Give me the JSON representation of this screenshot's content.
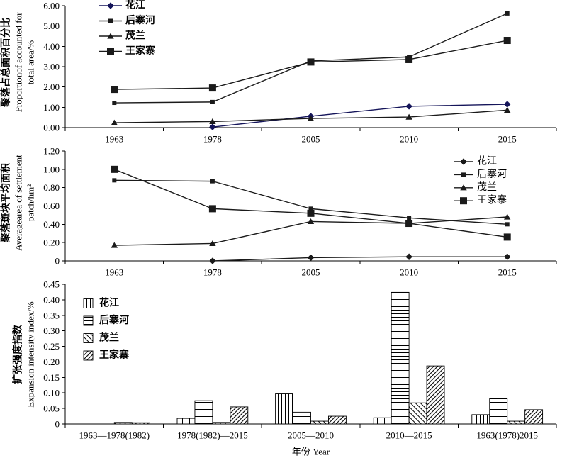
{
  "chart_data": [
    {
      "type": "line",
      "categories": [
        "1963",
        "1978",
        "2005",
        "2010",
        "2015"
      ],
      "ylabel": [
        "聚落占总面积百分比",
        "Proportionof accounted for",
        "total area/%"
      ],
      "ylim": [
        0,
        6
      ],
      "yticks": [
        "0.00",
        "1.00",
        "2.00",
        "3.00",
        "4.00",
        "5.00",
        "6.00"
      ],
      "grid": false,
      "legend": "top-left",
      "series": [
        {
          "name": "花江",
          "marker": "diamond",
          "color": "#15155a",
          "values": [
            null,
            0.03,
            0.56,
            1.05,
            1.15
          ]
        },
        {
          "name": "后寨河",
          "marker": "small-square",
          "color": "#1a1a1a",
          "values": [
            1.22,
            1.26,
            3.28,
            3.48,
            5.62
          ]
        },
        {
          "name": "茂兰",
          "marker": "triangle",
          "color": "#1a1a1a",
          "values": [
            0.24,
            0.3,
            0.45,
            0.52,
            0.86
          ]
        },
        {
          "name": "王家寨",
          "marker": "large-square",
          "color": "#1a1a1a",
          "values": [
            1.88,
            1.95,
            3.23,
            3.35,
            4.29
          ]
        }
      ]
    },
    {
      "type": "line",
      "categories": [
        "1963",
        "1978",
        "2005",
        "2010",
        "2015"
      ],
      "ylabel": [
        "聚落斑块平均面积",
        "Averagearea of settlement",
        "patch/hm²"
      ],
      "ylim": [
        0,
        1.2
      ],
      "yticks": [
        "0",
        "0.20",
        "0.40",
        "0.60",
        "0.80",
        "1.00",
        "1.20"
      ],
      "grid": false,
      "legend": "top-right",
      "series": [
        {
          "name": "花江",
          "marker": "diamond",
          "color": "#1a1a1a",
          "values": [
            null,
            0.0,
            0.035,
            0.045,
            0.045
          ]
        },
        {
          "name": "后寨河",
          "marker": "small-square",
          "color": "#1a1a1a",
          "values": [
            0.88,
            0.87,
            0.57,
            0.47,
            0.4
          ]
        },
        {
          "name": "茂兰",
          "marker": "triangle",
          "color": "#1a1a1a",
          "values": [
            0.17,
            0.19,
            0.43,
            0.41,
            0.48
          ]
        },
        {
          "name": "王家寨",
          "marker": "large-square",
          "color": "#1a1a1a",
          "values": [
            1.0,
            0.57,
            0.52,
            0.41,
            0.26
          ]
        }
      ]
    },
    {
      "type": "bar",
      "categories": [
        "1963—1978(1982)",
        "1978(1982)—2015",
        "2005—2010",
        "2010—2015",
        "1963(1978)2015"
      ],
      "xlabel": "年份 Year",
      "ylabel": [
        "扩张强度指数",
        "Expansion intensity index/%"
      ],
      "ylim": [
        0,
        0.45
      ],
      "yticks": [
        "0",
        "0.05",
        "0.10",
        "0.15",
        "0.20",
        "0.25",
        "0.30",
        "0.35",
        "0.40",
        "0.45"
      ],
      "grid": false,
      "legend": "top-left",
      "series": [
        {
          "name": "花江",
          "pattern": "vertical-stripes",
          "values": [
            0,
            0.018,
            0.097,
            0.02,
            0.03
          ]
        },
        {
          "name": "后寨河",
          "pattern": "horizontal-stripes",
          "values": [
            0,
            0.075,
            0.038,
            0.424,
            0.082
          ]
        },
        {
          "name": "茂兰",
          "pattern": "backward-diagonal",
          "values": [
            0.005,
            0.005,
            0.009,
            0.068,
            0.009
          ]
        },
        {
          "name": "王家寨",
          "pattern": "forward-diagonal",
          "values": [
            0.004,
            0.055,
            0.025,
            0.187,
            0.046
          ]
        }
      ]
    }
  ]
}
